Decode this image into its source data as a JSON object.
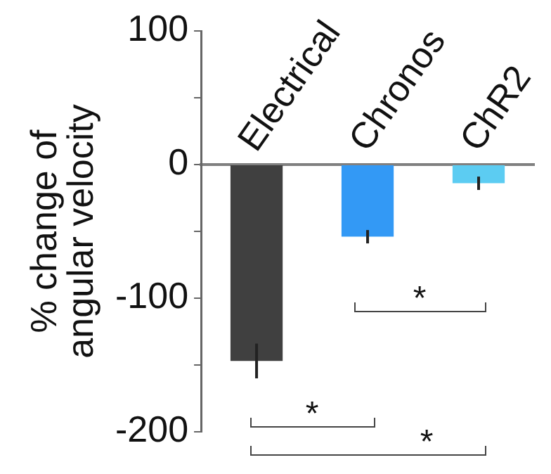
{
  "chart_data": {
    "type": "bar",
    "ylabel": "% change of\nangular velocity",
    "categories": [
      "Electrical",
      "Chronos",
      "ChR2"
    ],
    "values": [
      -147,
      -54,
      -14
    ],
    "colors": [
      "#404040",
      "#3399f5",
      "#5cccf2"
    ],
    "errors": [
      13,
      5,
      5
    ],
    "ylim": [
      -200,
      100
    ],
    "yticks": [
      -200,
      {
        "value": -150,
        "label": null
      },
      -100,
      {
        "value": -50,
        "label": null
      },
      0,
      {
        "value": 50,
        "label": null
      },
      100
    ],
    "annotations": [
      "*",
      "*",
      "*"
    ],
    "grid": false,
    "legend": false
  }
}
